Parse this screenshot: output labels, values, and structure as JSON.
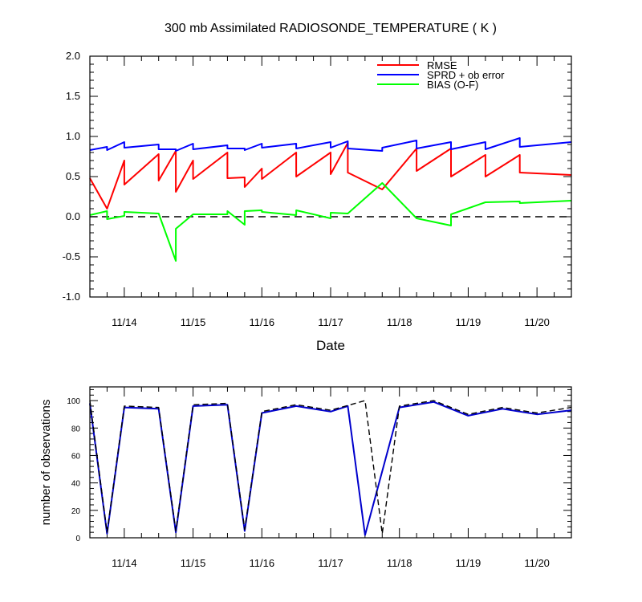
{
  "chart_data": [
    {
      "type": "line",
      "title": "300 mb Assimilated RADIOSONDE_TEMPERATURE ( K )",
      "xlabel": "Date",
      "ylabel": "",
      "xlim": [
        0,
        7
      ],
      "ylim": [
        -1.0,
        2.0
      ],
      "x_tick_labels": [
        "11/14",
        "11/15",
        "11/16",
        "11/17",
        "11/18",
        "11/19",
        "11/20"
      ],
      "y_tick_labels": [
        "-1.0",
        "-0.5",
        "0.0",
        "0.5",
        "1.0",
        "1.5",
        "2.0"
      ],
      "legend_placement": "top-right",
      "zero_line": true,
      "series": [
        {
          "name": "RMSE",
          "color": "#ff0000",
          "x": [
            0,
            0.25,
            0.25,
            0.5,
            0.5,
            1.0,
            1.0,
            1.25,
            1.25,
            1.5,
            1.5,
            2.0,
            2.0,
            2.25,
            2.25,
            2.5,
            2.5,
            3.0,
            3.0,
            3.5,
            3.5,
            3.75,
            3.75,
            4.25,
            4.25,
            4.75,
            4.75,
            5.25,
            5.25,
            5.75,
            5.75,
            6.25,
            6.25,
            7.0
          ],
          "values": [
            0.48,
            0.1,
            0.1,
            0.7,
            0.4,
            0.78,
            0.45,
            0.82,
            0.31,
            0.7,
            0.47,
            0.8,
            0.48,
            0.49,
            0.37,
            0.6,
            0.47,
            0.8,
            0.5,
            0.8,
            0.53,
            0.92,
            0.55,
            0.34,
            0.34,
            0.85,
            0.57,
            0.85,
            0.5,
            0.77,
            0.5,
            0.77,
            0.55,
            0.52
          ]
        },
        {
          "name": "SPRD + ob error",
          "color": "#0000ff",
          "x": [
            0,
            0.25,
            0.25,
            0.5,
            0.5,
            1.0,
            1.0,
            1.25,
            1.25,
            1.5,
            1.5,
            2.0,
            2.0,
            2.25,
            2.25,
            2.5,
            2.5,
            3.0,
            3.0,
            3.5,
            3.5,
            3.75,
            3.75,
            4.25,
            4.25,
            4.75,
            4.75,
            5.25,
            5.25,
            5.75,
            5.75,
            6.25,
            6.25,
            7.0
          ],
          "values": [
            0.83,
            0.87,
            0.83,
            0.93,
            0.86,
            0.9,
            0.84,
            0.84,
            0.82,
            0.91,
            0.84,
            0.89,
            0.85,
            0.85,
            0.83,
            0.91,
            0.86,
            0.91,
            0.85,
            0.93,
            0.86,
            0.94,
            0.85,
            0.82,
            0.86,
            0.95,
            0.85,
            0.93,
            0.84,
            0.93,
            0.84,
            0.98,
            0.87,
            0.93
          ]
        },
        {
          "name": "BIAS (O-F)",
          "color": "#00ff00",
          "x": [
            0,
            0.25,
            0.25,
            0.5,
            0.5,
            1.0,
            1.0,
            1.25,
            1.25,
            1.5,
            1.5,
            2.0,
            2.0,
            2.25,
            2.25,
            2.5,
            2.5,
            3.0,
            3.0,
            3.5,
            3.5,
            3.75,
            3.75,
            4.25,
            4.25,
            4.75,
            4.75,
            5.25,
            5.25,
            5.75,
            5.75,
            6.25,
            6.25,
            7.0
          ],
          "values": [
            0.02,
            0.07,
            -0.03,
            0.01,
            0.06,
            0.04,
            0.04,
            -0.55,
            -0.15,
            0.03,
            0.03,
            0.03,
            0.07,
            -0.1,
            0.07,
            0.08,
            0.06,
            0.02,
            0.08,
            -0.02,
            0.05,
            0.04,
            0.04,
            0.42,
            0.42,
            -0.02,
            -0.02,
            -0.11,
            0.03,
            0.18,
            0.18,
            0.19,
            0.17,
            0.2
          ]
        }
      ]
    },
    {
      "type": "line",
      "title": "",
      "xlabel": "",
      "ylabel": "number of observations",
      "xlim": [
        0,
        7
      ],
      "ylim": [
        0,
        110
      ],
      "x_tick_labels": [
        "11/14",
        "11/15",
        "11/16",
        "11/17",
        "11/18",
        "11/19",
        "11/20"
      ],
      "y_tick_labels": [
        "0",
        "20",
        "40",
        "60",
        "80",
        "100"
      ],
      "series": [
        {
          "color": "#0000cc",
          "style": "solid",
          "x": [
            0,
            0.25,
            0.5,
            1.0,
            1.25,
            1.5,
            2.0,
            2.25,
            2.5,
            3.0,
            3.5,
            3.75,
            4.0,
            4.5,
            5.0,
            5.5,
            6.0,
            6.5,
            7.0
          ],
          "values": [
            98,
            3,
            95,
            94,
            4,
            96,
            97,
            5,
            91,
            96,
            92,
            96,
            2,
            95,
            99,
            89,
            94,
            90,
            93
          ]
        },
        {
          "color": "#000000",
          "style": "dashed",
          "x": [
            0,
            0.25,
            0.5,
            1.0,
            1.25,
            1.5,
            2.0,
            2.25,
            2.5,
            3.0,
            3.5,
            4.0,
            4.25,
            4.5,
            5.0,
            5.5,
            6.0,
            6.5,
            7.0
          ],
          "values": [
            100,
            4,
            96,
            95,
            5,
            97,
            98,
            6,
            92,
            97,
            93,
            100,
            3,
            96,
            100,
            90,
            95,
            91,
            95
          ]
        }
      ]
    }
  ]
}
